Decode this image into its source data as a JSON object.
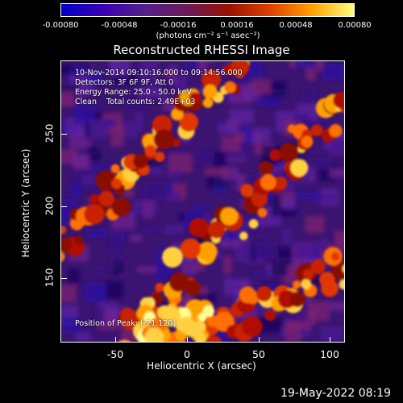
{
  "colorbar": {
    "labels": [
      "-0.00080",
      "-0.00048",
      "-0.00016",
      "0.00016",
      "0.00048",
      "0.00080"
    ],
    "unit": "(photons cm⁻² s⁻¹ asec⁻²)",
    "colors": [
      "#0000c8",
      "#3a00b4",
      "#55208a",
      "#6a1a5a",
      "#9a1000",
      "#e04000",
      "#ffa000",
      "#ffff80"
    ]
  },
  "title": "Reconstructed RHESSI Image",
  "info": {
    "line1": "10-Nov-2014 09:10:16.000 to 09:14:56.000",
    "line2": "Detectors: 3F 6F 9F, Att 0",
    "line3": "Energy Range: 25.0 - 50.0 keV",
    "line4": "Clean    Total counts: 2.49E+03",
    "peak": "Position of Peak: [-21,120]"
  },
  "axes": {
    "xlabel": "Heliocentric X (arcsec)",
    "ylabel": "Heliocentric Y (arcsec)",
    "xticks": [
      "-50",
      "0",
      "50",
      "100"
    ],
    "yticks": [
      "150",
      "200",
      "250"
    ]
  },
  "timestamp": "19-May-2022 08:19"
}
